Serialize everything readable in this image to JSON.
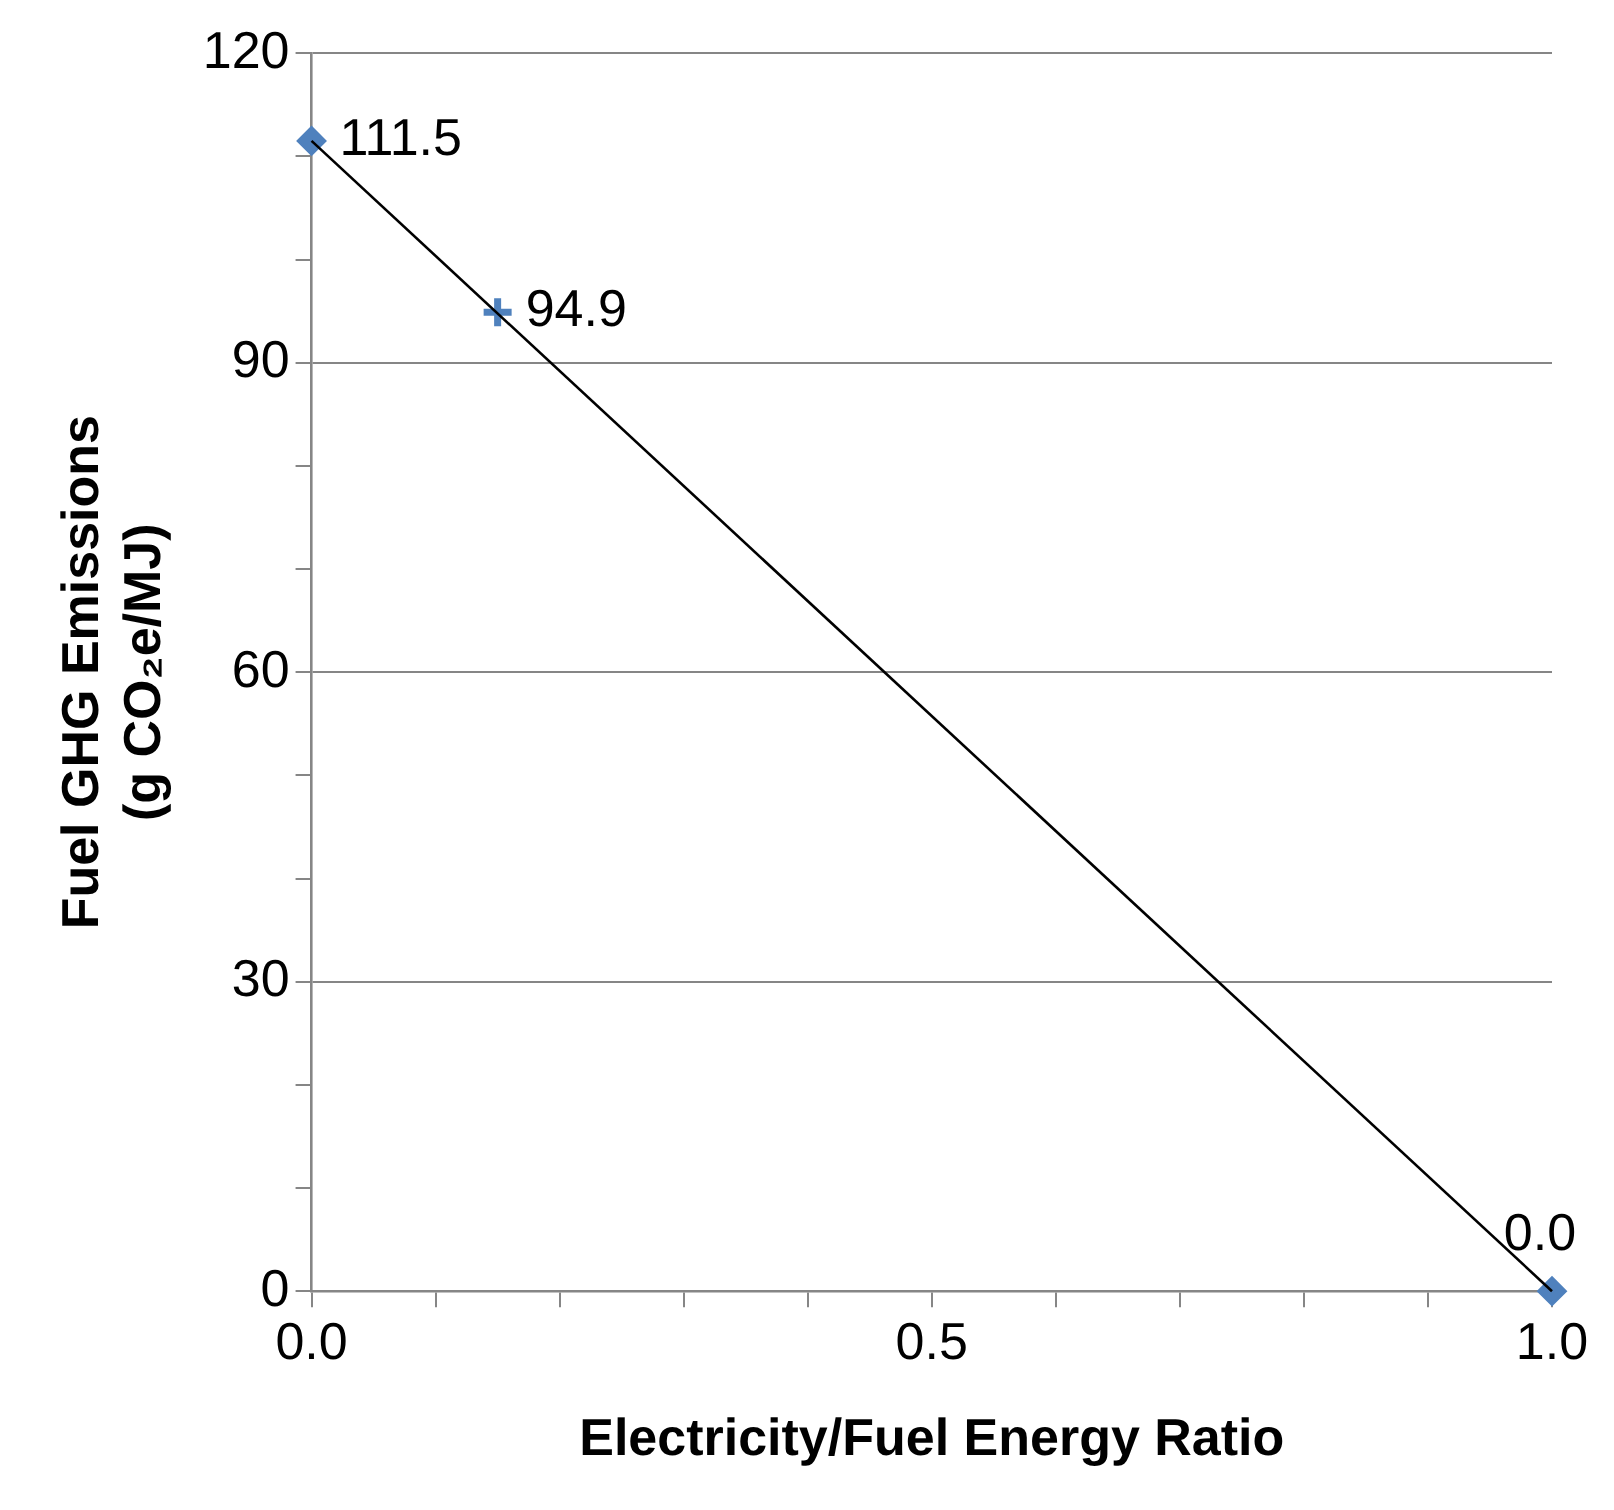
{
  "chart_data": {
    "type": "scatter",
    "xlabel": "Electricity/Fuel Energy Ratio",
    "ylabel": "Fuel GHG Emissions\n(g CO₂e/MJ)",
    "xlim": [
      0,
      1
    ],
    "xticks": [
      {
        "value": 0,
        "label": "0.0"
      },
      {
        "value": 0.1,
        "label": null
      },
      {
        "value": 0.2,
        "label": null
      },
      {
        "value": 0.3,
        "label": null
      },
      {
        "value": 0.4,
        "label": null
      },
      {
        "value": 0.5,
        "label": "0.5"
      },
      {
        "value": 0.6,
        "label": null
      },
      {
        "value": 0.7,
        "label": null
      },
      {
        "value": 0.8,
        "label": null
      },
      {
        "value": 0.9,
        "label": null
      },
      {
        "value": 1,
        "label": "1.0"
      }
    ],
    "ylim": [
      0,
      120
    ],
    "yticks": [
      0,
      {
        "value": 10,
        "label": null
      },
      {
        "value": 20,
        "label": null
      },
      30,
      {
        "value": 40,
        "label": null
      },
      {
        "value": 50,
        "label": null
      },
      60,
      {
        "value": 70,
        "label": null
      },
      {
        "value": 80,
        "label": null
      },
      90,
      {
        "value": 100,
        "label": null
      },
      {
        "value": 110,
        "label": null
      },
      120
    ],
    "grid": "y",
    "legend": false,
    "series": [
      {
        "type": "line",
        "color": "#000000",
        "x": [
          0,
          1
        ],
        "values": [
          111.5,
          0.0
        ],
        "marker": "none",
        "line_style": "solid"
      },
      {
        "type": "scatter",
        "color": "#4f81bd",
        "x": [
          0,
          1
        ],
        "values": [
          111.5,
          0.0
        ],
        "marker": "diamond",
        "value_labels": [
          "111.5",
          "0.0"
        ]
      },
      {
        "type": "scatter",
        "color": "#4f81bd",
        "x": [
          0.15
        ],
        "values": [
          94.9
        ],
        "marker": "cross",
        "value_labels": [
          "94.9"
        ]
      }
    ]
  }
}
